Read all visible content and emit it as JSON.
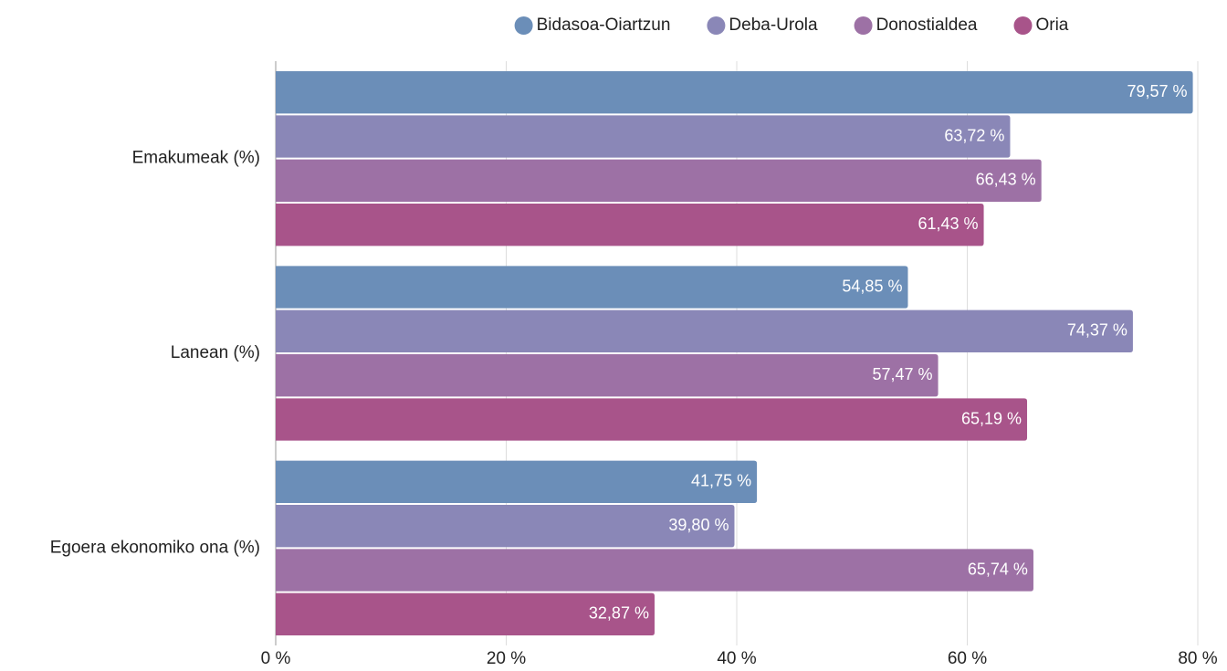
{
  "chart_data": {
    "type": "bar",
    "orientation": "horizontal",
    "categories": [
      "Emakumeak (%)",
      "Lanean (%)",
      "Egoera ekonomiko ona (%)"
    ],
    "series": [
      {
        "name": "Bidasoa-Oiartzun",
        "color": "#6b8eb8",
        "values": [
          79.57,
          54.85,
          41.75
        ],
        "value_labels": [
          "79,57 %",
          "54,85 %",
          "41,75 %"
        ]
      },
      {
        "name": "Deba-Urola",
        "color": "#8a87b7",
        "values": [
          63.72,
          74.37,
          39.8
        ],
        "value_labels": [
          "63,72 %",
          "74,37 %",
          "39,80 %"
        ]
      },
      {
        "name": "Donostialdea",
        "color": "#9d71a5",
        "values": [
          66.43,
          57.47,
          65.74
        ],
        "value_labels": [
          "66,43 %",
          "57,47 %",
          "65,74 %"
        ]
      },
      {
        "name": "Oria",
        "color": "#a8548a",
        "values": [
          61.43,
          65.19,
          32.87
        ],
        "value_labels": [
          "61,43 %",
          "65,19 %",
          "32,87 %"
        ]
      }
    ],
    "xlim": [
      0,
      80
    ],
    "xticks": [
      {
        "value": 0,
        "label": "0 %"
      },
      {
        "value": 20,
        "label": "20 %"
      },
      {
        "value": 40,
        "label": "40 %"
      },
      {
        "value": 60,
        "label": "60 %"
      },
      {
        "value": 80,
        "label": "80 %"
      }
    ],
    "grid": true,
    "legend": "top"
  }
}
